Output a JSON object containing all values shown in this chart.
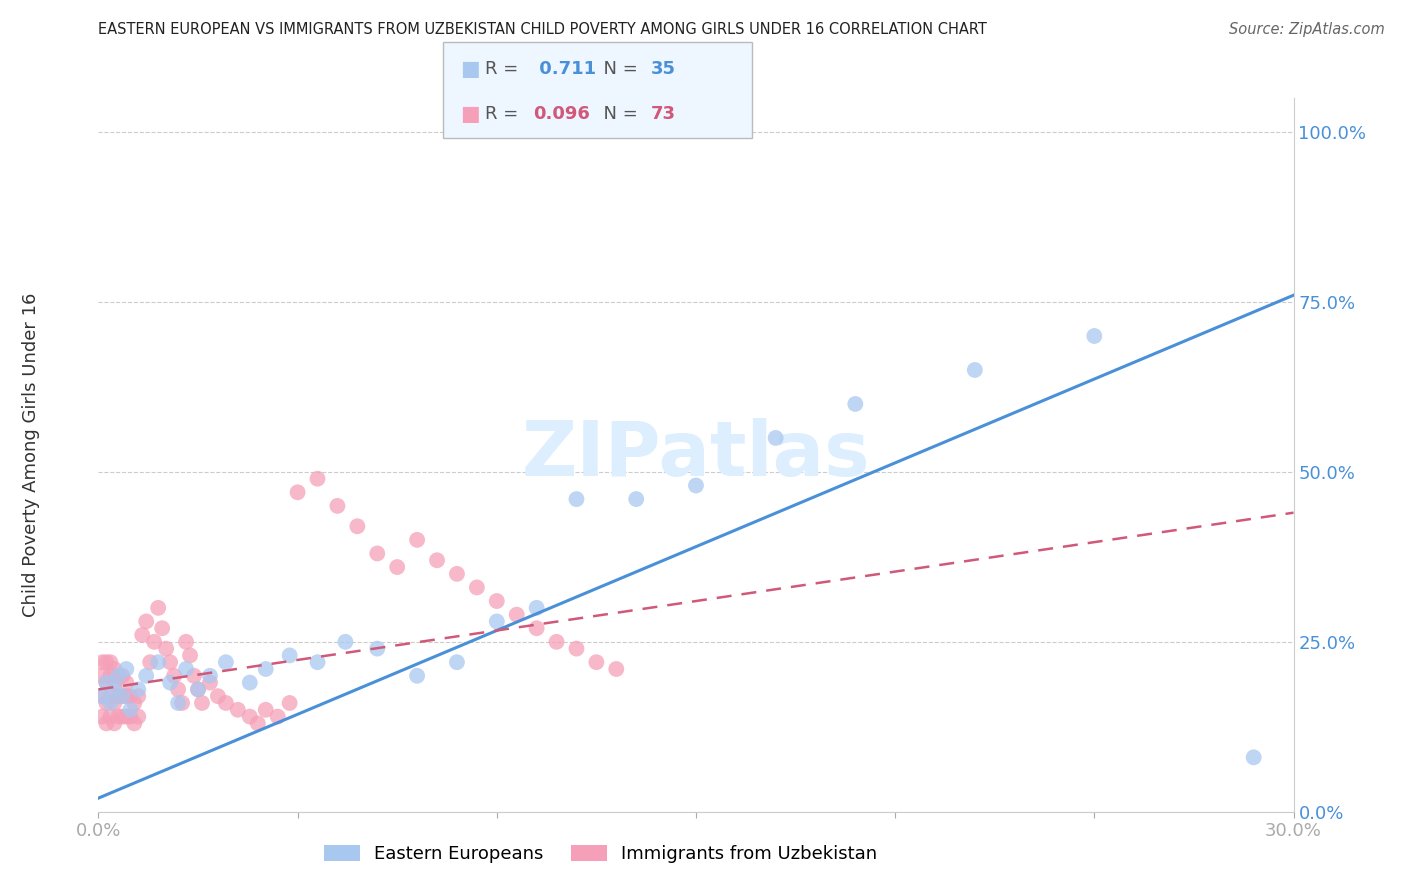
{
  "title": "EASTERN EUROPEAN VS IMMIGRANTS FROM UZBEKISTAN CHILD POVERTY AMONG GIRLS UNDER 16 CORRELATION CHART",
  "source": "Source: ZipAtlas.com",
  "ylabel": "Child Poverty Among Girls Under 16",
  "xlim": [
    0.0,
    0.3
  ],
  "ylim": [
    0.0,
    1.05
  ],
  "yticks": [
    0.0,
    0.25,
    0.5,
    0.75,
    1.0
  ],
  "ytick_labels": [
    "0.0%",
    "25.0%",
    "50.0%",
    "75.0%",
    "100.0%"
  ],
  "xticks": [
    0.0,
    0.05,
    0.1,
    0.15,
    0.2,
    0.25,
    0.3
  ],
  "xtick_labels": [
    "0.0%",
    "",
    "",
    "",
    "",
    "",
    "30.0%"
  ],
  "blue_R": 0.711,
  "blue_N": 35,
  "pink_R": 0.096,
  "pink_N": 73,
  "blue_color": "#a8c8f0",
  "pink_color": "#f5a0b8",
  "trendline_blue_color": "#4a90d9",
  "trendline_pink_color": "#d05878",
  "background_color": "#ffffff",
  "watermark": "ZIPatlas",
  "watermark_color": "#ddeeff",
  "legend_facecolor": "#eef6ff",
  "blue_scatter_x": [
    0.001,
    0.002,
    0.003,
    0.004,
    0.005,
    0.006,
    0.007,
    0.008,
    0.01,
    0.012,
    0.015,
    0.018,
    0.02,
    0.022,
    0.025,
    0.028,
    0.032,
    0.038,
    0.042,
    0.048,
    0.055,
    0.062,
    0.07,
    0.08,
    0.09,
    0.1,
    0.11,
    0.12,
    0.135,
    0.15,
    0.17,
    0.19,
    0.22,
    0.25,
    0.29
  ],
  "blue_scatter_y": [
    0.17,
    0.19,
    0.16,
    0.18,
    0.2,
    0.17,
    0.21,
    0.15,
    0.18,
    0.2,
    0.22,
    0.19,
    0.16,
    0.21,
    0.18,
    0.2,
    0.22,
    0.19,
    0.21,
    0.23,
    0.22,
    0.25,
    0.24,
    0.2,
    0.22,
    0.28,
    0.3,
    0.46,
    0.46,
    0.48,
    0.55,
    0.6,
    0.65,
    0.7,
    0.08
  ],
  "pink_scatter_x": [
    0.001,
    0.001,
    0.001,
    0.001,
    0.002,
    0.002,
    0.002,
    0.002,
    0.003,
    0.003,
    0.003,
    0.003,
    0.004,
    0.004,
    0.004,
    0.004,
    0.005,
    0.005,
    0.005,
    0.006,
    0.006,
    0.006,
    0.007,
    0.007,
    0.007,
    0.008,
    0.008,
    0.009,
    0.009,
    0.01,
    0.01,
    0.011,
    0.012,
    0.013,
    0.014,
    0.015,
    0.016,
    0.017,
    0.018,
    0.019,
    0.02,
    0.021,
    0.022,
    0.023,
    0.024,
    0.025,
    0.026,
    0.028,
    0.03,
    0.032,
    0.035,
    0.038,
    0.04,
    0.042,
    0.045,
    0.048,
    0.05,
    0.055,
    0.06,
    0.065,
    0.07,
    0.075,
    0.08,
    0.085,
    0.09,
    0.095,
    0.1,
    0.105,
    0.11,
    0.115,
    0.12,
    0.125,
    0.13
  ],
  "pink_scatter_y": [
    0.14,
    0.17,
    0.2,
    0.22,
    0.13,
    0.16,
    0.19,
    0.22,
    0.14,
    0.17,
    0.2,
    0.22,
    0.13,
    0.16,
    0.19,
    0.21,
    0.14,
    0.17,
    0.2,
    0.14,
    0.17,
    0.2,
    0.14,
    0.17,
    0.19,
    0.14,
    0.17,
    0.13,
    0.16,
    0.14,
    0.17,
    0.26,
    0.28,
    0.22,
    0.25,
    0.3,
    0.27,
    0.24,
    0.22,
    0.2,
    0.18,
    0.16,
    0.25,
    0.23,
    0.2,
    0.18,
    0.16,
    0.19,
    0.17,
    0.16,
    0.15,
    0.14,
    0.13,
    0.15,
    0.14,
    0.16,
    0.47,
    0.49,
    0.45,
    0.42,
    0.38,
    0.36,
    0.4,
    0.37,
    0.35,
    0.33,
    0.31,
    0.29,
    0.27,
    0.25,
    0.24,
    0.22,
    0.21
  ],
  "blue_trendline_x": [
    0.0,
    0.3
  ],
  "blue_trendline_y": [
    0.02,
    0.76
  ],
  "pink_trendline_x": [
    0.0,
    0.3
  ],
  "pink_trendline_y": [
    0.18,
    0.44
  ]
}
